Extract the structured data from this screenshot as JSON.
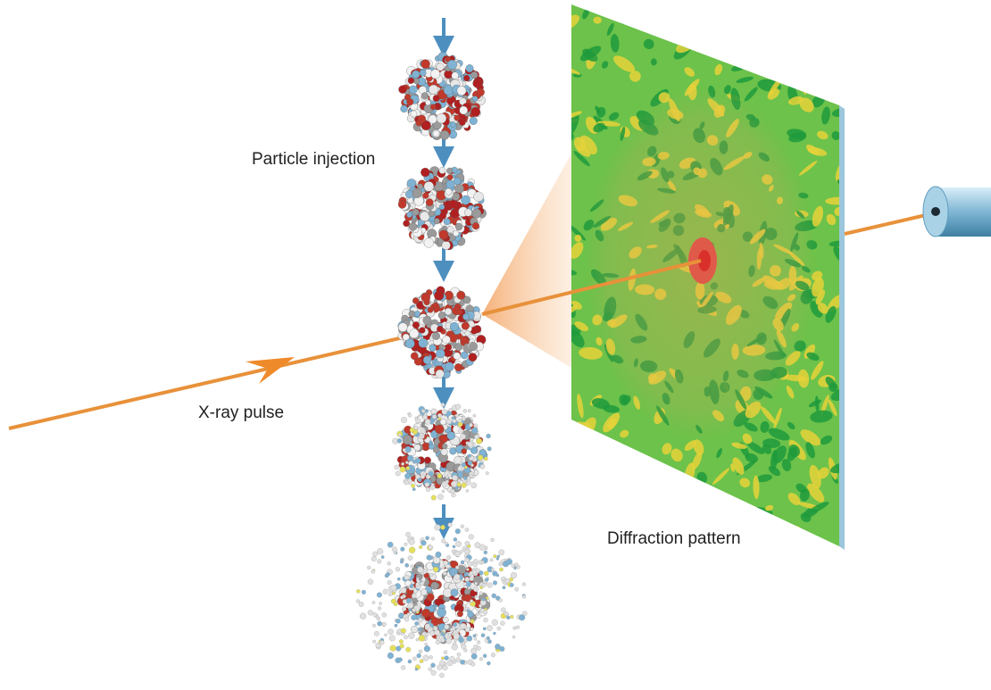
{
  "labels": {
    "particle_injection": "Particle injection",
    "x_ray_pulse": "X-ray pulse",
    "diffraction_pattern": "Diffraction pattern"
  }
}
